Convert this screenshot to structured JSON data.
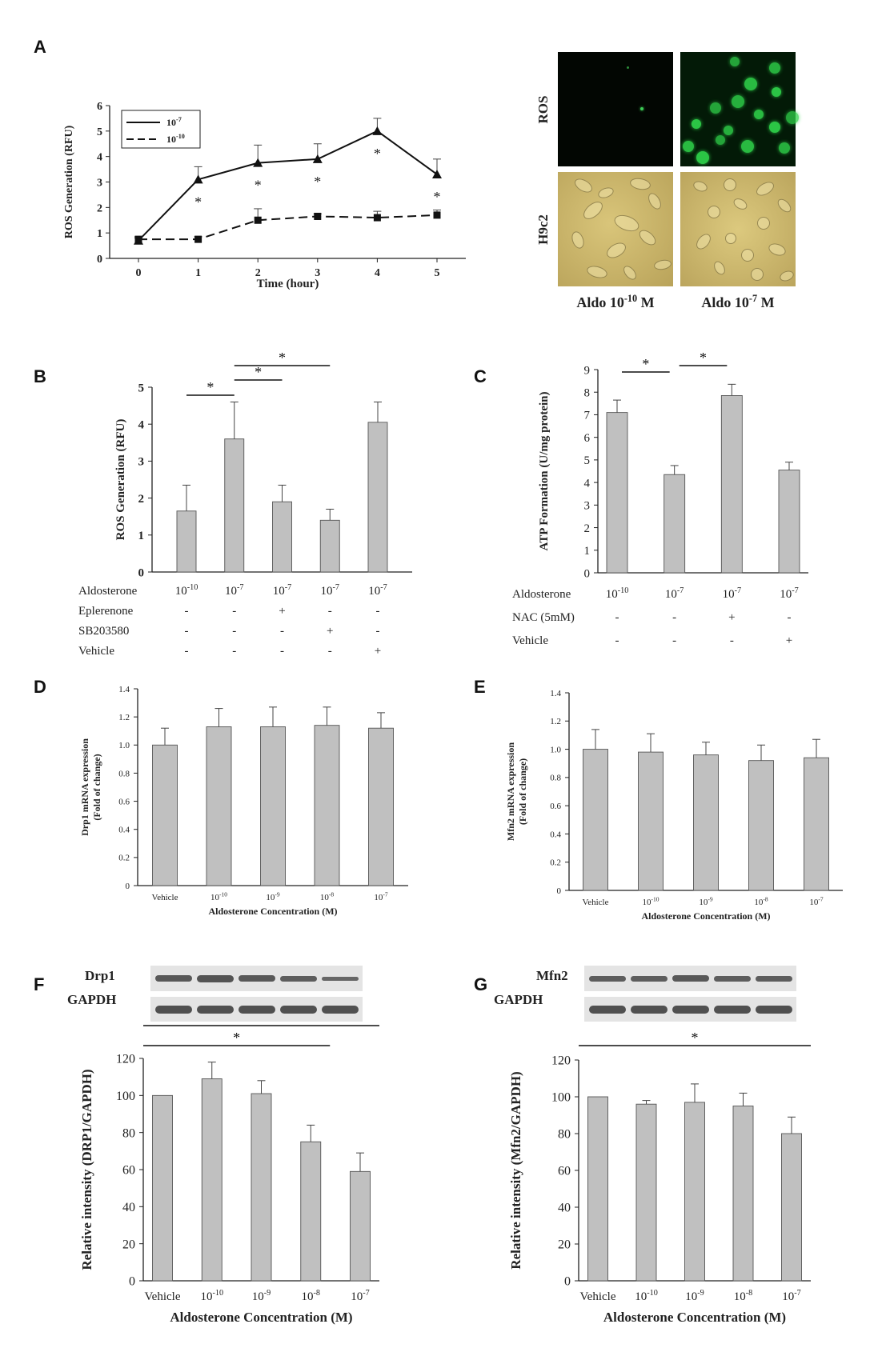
{
  "panels": {
    "A": "A",
    "B": "B",
    "C": "C",
    "D": "D",
    "E": "E",
    "F": "F",
    "G": "G"
  },
  "images": {
    "row_labels": [
      "ROS",
      "H9c2"
    ],
    "col_labels": [
      "Aldo 10-10 M",
      "Aldo 10-7 M"
    ],
    "col_label_parts": [
      {
        "pre": "Aldo 10",
        "sup": "-10",
        "post": " M"
      },
      {
        "pre": "Aldo 10",
        "sup": "-7",
        "post": " M"
      }
    ]
  },
  "blots": {
    "F": {
      "protein": "Drp1",
      "control": "GAPDH"
    },
    "G": {
      "protein": "Mfn2",
      "control": "GAPDH"
    }
  },
  "colors": {
    "bar": "#c0c0c0",
    "axis": "#222222",
    "ros_green": "#2fd24a",
    "phase_bg": "#c8b36a",
    "gel": "#2a2a2a"
  },
  "chart_data": [
    {
      "id": "A",
      "type": "line",
      "xlabel": "Time (hour)",
      "ylabel": "ROS Generation (RFU)",
      "x": [
        0,
        1,
        2,
        3,
        4,
        5
      ],
      "xticks": [
        "0",
        "1",
        "2",
        "3",
        "4",
        "5"
      ],
      "ylim": [
        0,
        6
      ],
      "yticks": [
        "0",
        "1",
        "2",
        "3",
        "4",
        "5",
        "6"
      ],
      "legend_position": "top-left",
      "series": [
        {
          "name": "10-7",
          "name_parts": {
            "pre": "10",
            "sup": "-7"
          },
          "marker": "triangle",
          "dash": false,
          "values": [
            0.7,
            3.1,
            3.75,
            3.9,
            5.0,
            3.3
          ],
          "errors": [
            0.1,
            0.5,
            0.7,
            0.6,
            0.5,
            0.6
          ],
          "significant": [
            false,
            true,
            true,
            true,
            true,
            true
          ]
        },
        {
          "name": "10-10",
          "name_parts": {
            "pre": "10",
            "sup": "-10"
          },
          "marker": "square",
          "dash": true,
          "values": [
            0.75,
            0.75,
            1.5,
            1.65,
            1.6,
            1.7
          ],
          "errors": [
            0.1,
            0.1,
            0.45,
            0.1,
            0.25,
            0.2
          ],
          "significant": [
            false,
            false,
            false,
            false,
            false,
            false
          ]
        }
      ]
    },
    {
      "id": "B",
      "type": "bar",
      "ylabel": "ROS Generation (RFU)",
      "ylim": [
        0,
        5
      ],
      "yticks": [
        "0",
        "1",
        "2",
        "3",
        "4",
        "5"
      ],
      "values": [
        1.65,
        3.6,
        1.9,
        1.4,
        4.05
      ],
      "errors": [
        0.7,
        1.0,
        0.45,
        0.3,
        0.55
      ],
      "rows": [
        {
          "label": "Aldosterone",
          "cells": [
            "10-10",
            "10-7",
            "10-7",
            "10-7",
            "10-7"
          ],
          "cells_parts": [
            {
              "pre": "10",
              "sup": "-10"
            },
            {
              "pre": "10",
              "sup": "-7"
            },
            {
              "pre": "10",
              "sup": "-7"
            },
            {
              "pre": "10",
              "sup": "-7"
            },
            {
              "pre": "10",
              "sup": "-7"
            }
          ]
        },
        {
          "label": "Eplerenone",
          "cells": [
            "-",
            "-",
            "+",
            "-",
            "-"
          ]
        },
        {
          "label": "SB203580",
          "cells": [
            "-",
            "-",
            "-",
            "+",
            "-"
          ]
        },
        {
          "label": "Vehicle",
          "cells": [
            "-",
            "-",
            "-",
            "-",
            "+"
          ]
        }
      ],
      "significance": [
        {
          "from": 0,
          "to": 1,
          "label": "*"
        },
        {
          "from": 1,
          "to": 2,
          "label": "*"
        },
        {
          "from": 1,
          "to": 3,
          "label": "*"
        }
      ]
    },
    {
      "id": "C",
      "type": "bar",
      "ylabel": "ATP Formation (U/mg protein)",
      "ylim": [
        0,
        9
      ],
      "yticks": [
        "0",
        "1",
        "2",
        "3",
        "4",
        "5",
        "6",
        "7",
        "8",
        "9"
      ],
      "values": [
        7.1,
        4.35,
        7.85,
        4.55
      ],
      "errors": [
        0.55,
        0.4,
        0.5,
        0.35
      ],
      "rows": [
        {
          "label": "Aldosterone",
          "cells": [
            "10-10",
            "10-7",
            "10-7",
            "10-7"
          ],
          "cells_parts": [
            {
              "pre": "10",
              "sup": "-10"
            },
            {
              "pre": "10",
              "sup": "-7"
            },
            {
              "pre": "10",
              "sup": "-7"
            },
            {
              "pre": "10",
              "sup": "-7"
            }
          ]
        },
        {
          "label": "NAC (5mM)",
          "cells": [
            "-",
            "-",
            "+",
            "-"
          ]
        },
        {
          "label": "Vehicle",
          "cells": [
            "-",
            "-",
            "-",
            "+"
          ]
        }
      ],
      "significance": [
        {
          "from": 0,
          "to": 1,
          "label": "*"
        },
        {
          "from": 1,
          "to": 2,
          "label": "*"
        }
      ]
    },
    {
      "id": "D",
      "type": "bar",
      "ylabel": "Drp1 mRNA expression (Fold of change)",
      "ylabel_lines": [
        "Drp1 mRNA expression",
        "(Fold of change)"
      ],
      "xlabel": "Aldosterone Concentration (M)",
      "categories": [
        "Vehicle",
        "10-10",
        "10-9",
        "10-8",
        "10-7"
      ],
      "categories_parts": [
        {
          "pre": "Vehicle",
          "sup": ""
        },
        {
          "pre": "10",
          "sup": "-10"
        },
        {
          "pre": "10",
          "sup": "-9"
        },
        {
          "pre": "10",
          "sup": "-8"
        },
        {
          "pre": "10",
          "sup": "-7"
        }
      ],
      "ylim": [
        0,
        1.4
      ],
      "yticks": [
        "0",
        "0.2",
        "0.4",
        "0.6",
        "0.8",
        "1.0",
        "1.2",
        "1.4"
      ],
      "values": [
        1.0,
        1.13,
        1.13,
        1.14,
        1.12
      ],
      "errors": [
        0.12,
        0.13,
        0.14,
        0.13,
        0.11
      ]
    },
    {
      "id": "E",
      "type": "bar",
      "ylabel": "Mfn2 mRNA expression (Fold of change)",
      "ylabel_lines": [
        "Mfn2 mRNA expression",
        "(Fold of change)"
      ],
      "xlabel": "Aldosterone Concentration (M)",
      "categories": [
        "Vehicle",
        "10-10",
        "10-9",
        "10-8",
        "10-7"
      ],
      "categories_parts": [
        {
          "pre": "Vehicle",
          "sup": ""
        },
        {
          "pre": "10",
          "sup": "-10"
        },
        {
          "pre": "10",
          "sup": "-9"
        },
        {
          "pre": "10",
          "sup": "-8"
        },
        {
          "pre": "10",
          "sup": "-7"
        }
      ],
      "ylim": [
        0,
        1.4
      ],
      "yticks": [
        "0",
        "0.2",
        "0.4",
        "0.6",
        "0.8",
        "1.0",
        "1.2",
        "1.4"
      ],
      "values": [
        1.0,
        0.98,
        0.96,
        0.92,
        0.94
      ],
      "errors": [
        0.14,
        0.13,
        0.09,
        0.11,
        0.13
      ]
    },
    {
      "id": "F",
      "type": "bar",
      "ylabel": "Relative intensity (DRP1/GAPDH)",
      "xlabel": "Aldosterone Concentration (M)",
      "categories": [
        "Vehicle",
        "10-10",
        "10-9",
        "10-8",
        "10-7"
      ],
      "categories_parts": [
        {
          "pre": "Vehicle",
          "sup": ""
        },
        {
          "pre": "10",
          "sup": "-10"
        },
        {
          "pre": "10",
          "sup": "-9"
        },
        {
          "pre": "10",
          "sup": "-8"
        },
        {
          "pre": "10",
          "sup": "-7"
        }
      ],
      "ylim": [
        0,
        120
      ],
      "yticks": [
        "0",
        "20",
        "40",
        "60",
        "80",
        "100",
        "120"
      ],
      "values": [
        100,
        109,
        101,
        75,
        59
      ],
      "errors": [
        0,
        9,
        7,
        9,
        10
      ],
      "significance": [
        {
          "from": 0,
          "to": 3,
          "label": "*"
        },
        {
          "from": 0,
          "to": 4,
          "label": "*"
        }
      ]
    },
    {
      "id": "G",
      "type": "bar",
      "ylabel": "Relative intensity (Mfn2/GAPDH)",
      "xlabel": "Aldosterone Concentration (M)",
      "categories": [
        "Vehicle",
        "10-10",
        "10-9",
        "10-8",
        "10-7"
      ],
      "categories_parts": [
        {
          "pre": "Vehicle",
          "sup": ""
        },
        {
          "pre": "10",
          "sup": "-10"
        },
        {
          "pre": "10",
          "sup": "-9"
        },
        {
          "pre": "10",
          "sup": "-8"
        },
        {
          "pre": "10",
          "sup": "-7"
        }
      ],
      "ylim": [
        0,
        120
      ],
      "yticks": [
        "0",
        "20",
        "40",
        "60",
        "80",
        "100",
        "120"
      ],
      "values": [
        100,
        96,
        97,
        95,
        80
      ],
      "errors": [
        0,
        2,
        10,
        7,
        9
      ],
      "significance": [
        {
          "from": 0,
          "to": 4,
          "label": "*"
        }
      ]
    }
  ]
}
